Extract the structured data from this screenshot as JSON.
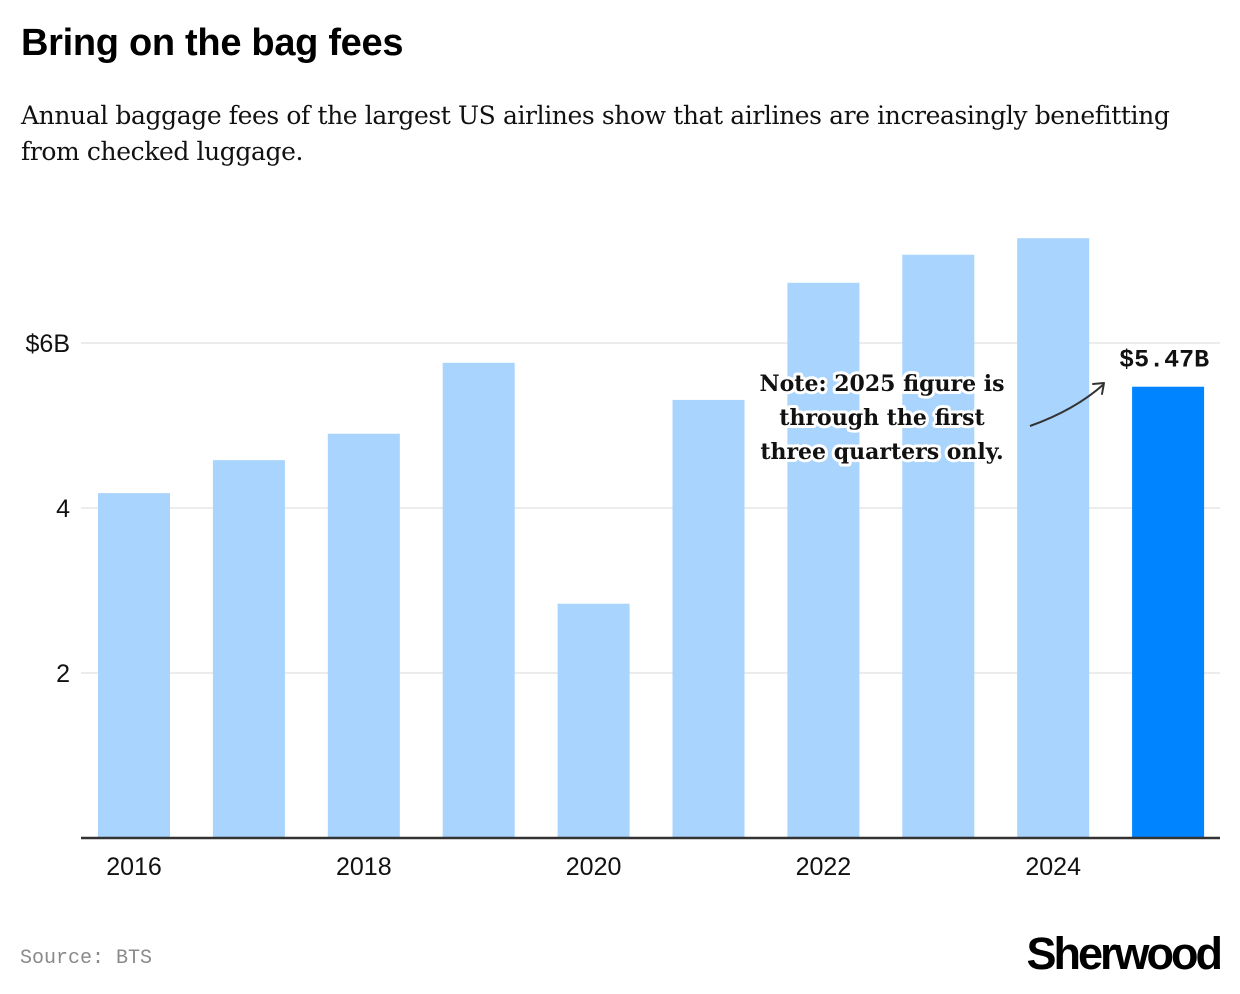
{
  "header": {
    "title": "Bring on the bag fees",
    "subtitle": "Annual baggage fees of the largest US airlines show that airlines are increasingly benefitting from checked luggage."
  },
  "footer": {
    "source": "Source: BTS",
    "brand": "Sherwood"
  },
  "colors": {
    "bar": "#A8D4FD",
    "highlight_bar": "#0084FF",
    "grid": "#E6E6E6",
    "axis": "#333333"
  },
  "chart_data": {
    "type": "bar",
    "title": "Bring on the bag fees",
    "xlabel": "",
    "ylabel": "",
    "categories": [
      "2016",
      "2017",
      "2018",
      "2019",
      "2020",
      "2021",
      "2022",
      "2023",
      "2024",
      "2025"
    ],
    "values": [
      4.18,
      4.58,
      4.9,
      5.76,
      2.84,
      5.31,
      6.73,
      7.07,
      7.27,
      5.47
    ],
    "units": "billion USD",
    "highlight_index": 9,
    "ylim": [
      0,
      7.5
    ],
    "y_ticks": [
      {
        "value": 2,
        "label": "2"
      },
      {
        "value": 4,
        "label": "4"
      },
      {
        "value": 6,
        "label": "$6B"
      }
    ],
    "x_tick_labels": [
      {
        "category": "2016",
        "label": "2016"
      },
      {
        "category": "2018",
        "label": "2018"
      },
      {
        "category": "2020",
        "label": "2020"
      },
      {
        "category": "2022",
        "label": "2022"
      },
      {
        "category": "2024",
        "label": "2024"
      }
    ],
    "grid": true,
    "value_label": {
      "category": "2025",
      "text": "$5.47B"
    },
    "annotation": {
      "lines": [
        "Note: 2025 figure is",
        "through the first",
        "three quarters only."
      ],
      "points_to": "2025"
    }
  }
}
